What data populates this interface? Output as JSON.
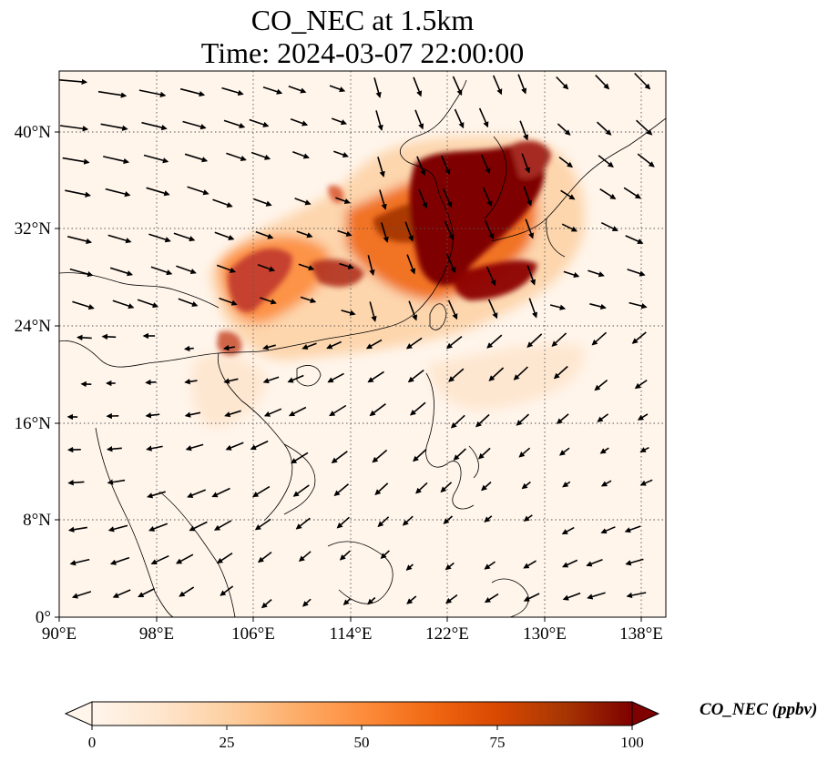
{
  "title": {
    "line1": "CO_NEC at 1.5km",
    "line2": "Time: 2024-03-07 22:00:00"
  },
  "map": {
    "lon_range": [
      90,
      140
    ],
    "lat_range": [
      0,
      45
    ],
    "grid": "dotted",
    "x_ticks": [
      "90°E",
      "98°E",
      "106°E",
      "114°E",
      "122°E",
      "130°E",
      "138°E"
    ],
    "y_ticks": [
      "0°",
      "8°N",
      "16°N",
      "24°N",
      "32°N",
      "40°N"
    ],
    "overlay": "wind-vectors"
  },
  "colorbar": {
    "label": "CO_NEC (ppbv)",
    "ticks": [
      "0",
      "25",
      "50",
      "75",
      "100"
    ],
    "range": [
      0,
      100
    ],
    "extend": "both",
    "colormap": [
      "#fff5eb",
      "#fee6ce",
      "#fdd0a2",
      "#fdae6b",
      "#fd8d3c",
      "#f16913",
      "#d94801",
      "#a63603",
      "#7f0000"
    ]
  }
}
